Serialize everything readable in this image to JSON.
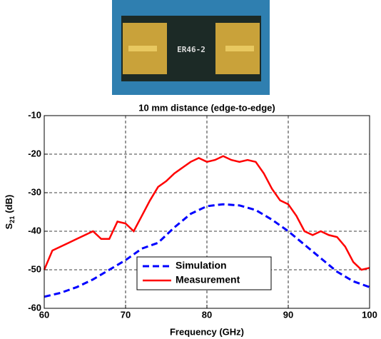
{
  "image": {
    "label": "ER46-2"
  },
  "chart_data": {
    "type": "line",
    "title": "10 mm distance (edge-to-edge)",
    "xlabel": "Frequency (GHz)",
    "ylabel": {
      "base": "S",
      "sub": "21",
      "unit": "(dB)"
    },
    "xlim": [
      60,
      100
    ],
    "xticks": [
      60,
      70,
      80,
      90,
      100
    ],
    "ylim": [
      -60,
      -10
    ],
    "yticks": [
      -60,
      -50,
      -40,
      -30,
      -20,
      -10
    ],
    "grid": true,
    "legend": "lower center",
    "series": [
      {
        "name": "Simulation",
        "color": "#0000ff",
        "dash": true,
        "x": [
          60,
          62,
          64,
          66,
          68,
          70,
          72,
          74,
          76,
          78,
          80,
          82,
          84,
          86,
          88,
          90,
          92,
          94,
          96,
          98,
          100
        ],
        "values": [
          -57,
          -56,
          -54.5,
          -52.5,
          -50,
          -47.5,
          -44.5,
          -43,
          -39,
          -35.5,
          -33.5,
          -33,
          -33.3,
          -34.5,
          -37,
          -40,
          -43.5,
          -47,
          -50.5,
          -53,
          -54.5
        ]
      },
      {
        "name": "Measurement",
        "color": "#ff0000",
        "dash": false,
        "x": [
          60,
          61,
          62,
          63,
          64,
          65,
          66,
          67,
          68,
          69,
          70,
          71,
          72,
          73,
          74,
          75,
          76,
          77,
          78,
          79,
          80,
          81,
          82,
          83,
          84,
          85,
          86,
          87,
          88,
          89,
          90,
          91,
          92,
          93,
          94,
          95,
          96,
          97,
          98,
          99,
          100
        ],
        "values": [
          -50,
          -45,
          -44,
          -43,
          -42,
          -41,
          -40,
          -42,
          -42,
          -37.5,
          -38,
          -40,
          -36,
          -32,
          -28.5,
          -27,
          -25,
          -23.5,
          -22,
          -21,
          -22,
          -21.5,
          -20.5,
          -21.5,
          -22,
          -21.5,
          -22,
          -25,
          -29,
          -32,
          -33,
          -36,
          -40,
          -41,
          -40,
          -41,
          -41.5,
          -44,
          -48,
          -50,
          -49.5
        ]
      }
    ]
  }
}
